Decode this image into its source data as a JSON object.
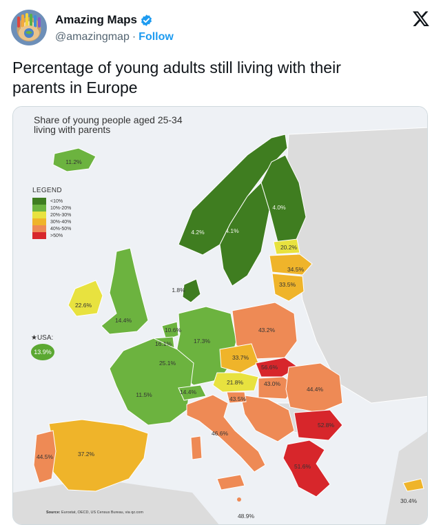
{
  "tweet": {
    "display_name": "Amazing Maps",
    "handle": "@amazingmap",
    "separator": "·",
    "follow_label": "Follow",
    "text_line1": "Percentage of young adults still living with their",
    "text_line2": "parents in Europe"
  },
  "icons": {
    "avatar": "avatar-hands-icon",
    "verified": "verified-badge-icon",
    "brand": "x-logo-icon"
  },
  "colors": {
    "follow": "#1d9bf0",
    "verified": "#1d9bf0",
    "under10": "#3f7d20",
    "r10_20": "#6cb33f",
    "r20_30": "#e8e23f",
    "r30_40": "#efb42a",
    "r40_50": "#ee8a55",
    "over50": "#d7262b"
  },
  "map": {
    "title_line1": "Share of young people aged 25-34",
    "title_line2": "living with parents",
    "legend_title": "LEGEND",
    "legend": [
      {
        "label": "<10%",
        "color": "#3f7d20"
      },
      {
        "label": "10%-20%",
        "color": "#6cb33f"
      },
      {
        "label": "20%-30%",
        "color": "#e8e23f"
      },
      {
        "label": "30%-40%",
        "color": "#efb42a"
      },
      {
        "label": "40%-50%",
        "color": "#ee8a55"
      },
      {
        "label": ">50%",
        "color": "#d7262b"
      }
    ],
    "usa_label": "★USA:",
    "usa_value": "13.9%",
    "values": {
      "iceland": "11.2%",
      "norway": "4.2%",
      "sweden": "4.1%",
      "finland": "4.0%",
      "estonia": "20.2%",
      "latvia": "34.5%",
      "lithuania": "33.5%",
      "denmark": "1.8%",
      "ireland": "22.6%",
      "uk": "14.4%",
      "netherlands": "10.6%",
      "belgium": "16.1%",
      "luxembourg": "25.1%",
      "germany": "17.3%",
      "poland": "43.2%",
      "czechia": "33.7%",
      "slovakia": "56.6%",
      "austria": "21.8%",
      "hungary": "43.0%",
      "romania": "44.4%",
      "france": "11.5%",
      "switzerland": "14.4%",
      "slovenia": "43.5%",
      "italy": "46.6%",
      "bulgaria": "52.8%",
      "greece": "51.6%",
      "portugal": "44.5%",
      "spain": "37.2%",
      "cyprus": "30.4%",
      "malta": "48.9%"
    },
    "source_label": "Source:",
    "source_text": "Eurostat, OECD, US Census Bureau, via qz.com"
  }
}
